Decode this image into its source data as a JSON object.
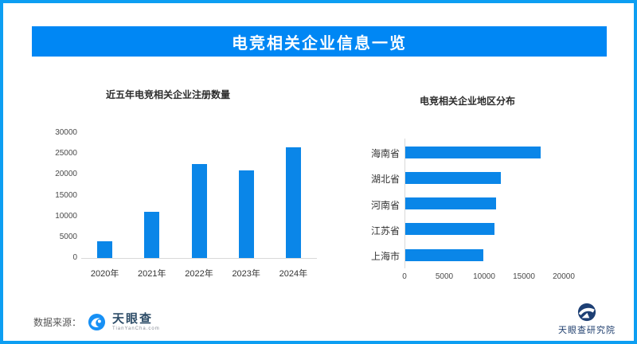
{
  "header": {
    "title": "电竞相关企业信息一览",
    "bg_color": "#0087f4",
    "text_color": "#ffffff"
  },
  "frame": {
    "border_color": "#0d9ef2"
  },
  "chart_data": [
    {
      "type": "bar",
      "title": "近五年电竞相关企业注册数量",
      "categories": [
        "2020年",
        "2021年",
        "2022年",
        "2023年",
        "2024年"
      ],
      "values": [
        4000,
        11000,
        22500,
        21000,
        26500
      ],
      "xlabel": "",
      "ylabel": "",
      "ylim": [
        0,
        30000
      ],
      "yticks": [
        0,
        5000,
        10000,
        15000,
        20000,
        25000,
        30000
      ],
      "grid": "off",
      "legend": "none",
      "bar_color": "#0a86e8"
    },
    {
      "type": "bar",
      "orientation": "horizontal",
      "title": "电竞相关企业地区分布",
      "categories": [
        "海南省",
        "湖北省",
        "河南省",
        "江苏省",
        "上海市"
      ],
      "values": [
        17000,
        12000,
        11400,
        11200,
        9800
      ],
      "xlabel": "",
      "ylabel": "",
      "xlim": [
        0,
        20000
      ],
      "xticks": [
        0,
        5000,
        10000,
        15000,
        20000
      ],
      "grid": "off",
      "legend": "none",
      "bar_color": "#0a86e8"
    }
  ],
  "footer": {
    "source_label": "数据来源：",
    "brand": {
      "icon": "tianyancha-eye-logo",
      "text": "天眼查",
      "subtext": "TianYanCha.com",
      "logo_color": "#1790f5"
    },
    "research": {
      "icon": "tianyancha-research-logo",
      "text": "天眼查研究院",
      "logo_color": "#1d3f74"
    }
  }
}
